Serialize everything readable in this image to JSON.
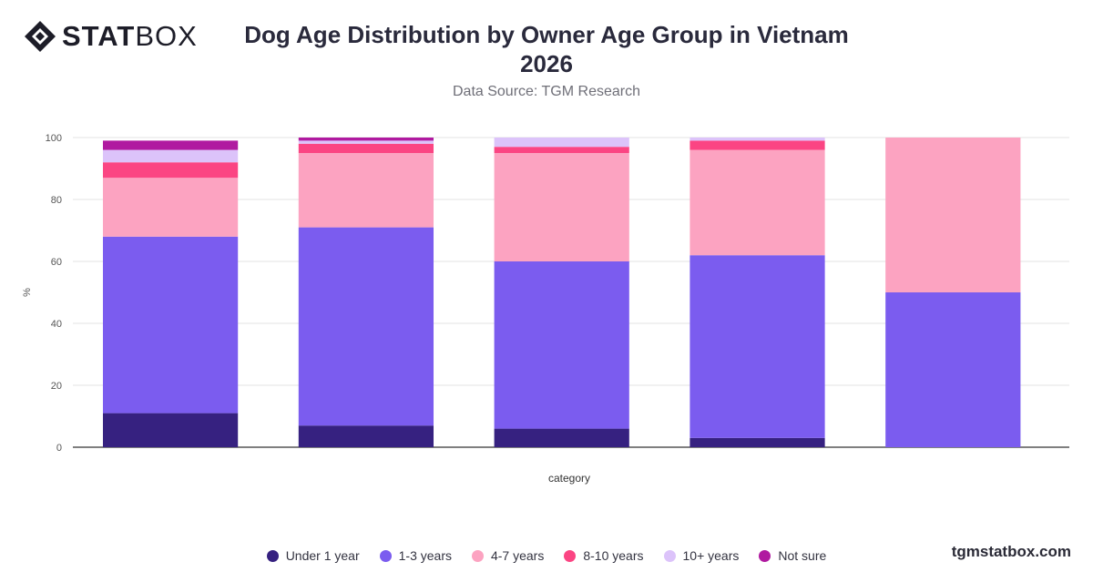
{
  "logo": {
    "text_bold": "STAT",
    "text_light": "BOX"
  },
  "brand_url": "tgmstatbox.com",
  "chart_data": {
    "type": "bar",
    "stacked": true,
    "title": "Dog Age Distribution by Owner Age Group in Vietnam 2026",
    "subtitle": "Data Source: TGM Research",
    "xlabel": "category",
    "ylabel": "%",
    "ylim": [
      0,
      100
    ],
    "yticks": [
      0,
      20,
      40,
      60,
      80,
      100
    ],
    "grid": true,
    "legend_position": "bottom",
    "categories": [
      "",
      "",
      "",
      "",
      ""
    ],
    "series": [
      {
        "name": "Under 1 year",
        "color": "#362180",
        "values": [
          11,
          7,
          6,
          3,
          0
        ]
      },
      {
        "name": "1-3 years",
        "color": "#7b5cef",
        "values": [
          57,
          64,
          54,
          59,
          50
        ]
      },
      {
        "name": "4-7 years",
        "color": "#fca3c1",
        "values": [
          19,
          24,
          35,
          34,
          50
        ]
      },
      {
        "name": "8-10 years",
        "color": "#fb4583",
        "values": [
          5,
          3,
          2,
          3,
          0
        ]
      },
      {
        "name": "10+ years",
        "color": "#dcc3fa",
        "values": [
          4,
          1,
          3,
          1,
          0
        ]
      },
      {
        "name": "Not sure",
        "color": "#b01aa0",
        "values": [
          3,
          1,
          0,
          0,
          0
        ]
      }
    ]
  }
}
